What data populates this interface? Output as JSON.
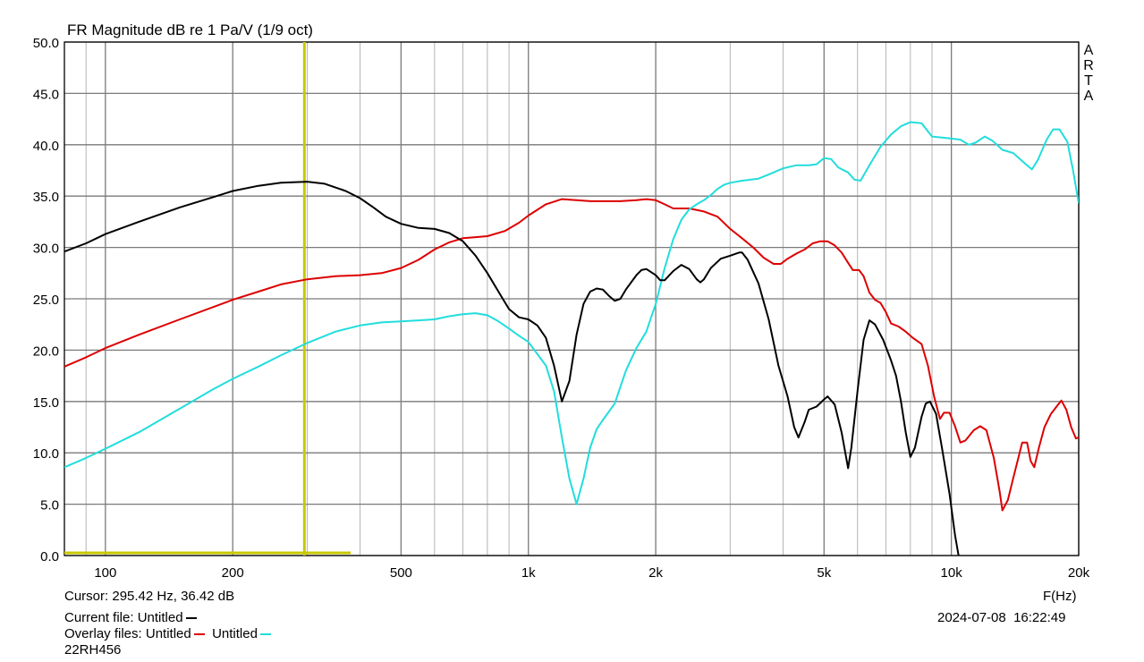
{
  "chart_data": {
    "type": "line",
    "title": "FR Magnitude dB re 1 Pa/V (1/9 oct)",
    "xlabel": "F(Hz)",
    "ylabel": "",
    "x_scale": "log",
    "xlim": [
      80,
      20000
    ],
    "ylim": [
      0,
      50
    ],
    "grid": true,
    "y_ticks": [
      "50.0",
      "45.0",
      "40.0",
      "35.0",
      "30.0",
      "25.0",
      "20.0",
      "15.0",
      "10.0",
      "5.0",
      "0.0"
    ],
    "y_tick_values": [
      50,
      45,
      40,
      35,
      30,
      25,
      20,
      15,
      10,
      5,
      0
    ],
    "x_ticks": [
      "100",
      "200",
      "500",
      "1k",
      "2k",
      "5k",
      "10k",
      "20k"
    ],
    "x_tick_values": [
      100,
      200,
      500,
      1000,
      2000,
      5000,
      10000,
      20000
    ],
    "side_label": [
      "A",
      "R",
      "T",
      "A"
    ],
    "cursor": {
      "frequency": 295.42,
      "level": 36.42,
      "color": "#c8c800"
    },
    "series": [
      {
        "name": "Untitled",
        "color": "#000000",
        "points": [
          [
            80,
            29.6
          ],
          [
            90,
            30.4
          ],
          [
            100,
            31.3
          ],
          [
            120,
            32.5
          ],
          [
            150,
            33.9
          ],
          [
            180,
            34.9
          ],
          [
            200,
            35.5
          ],
          [
            230,
            36.0
          ],
          [
            260,
            36.3
          ],
          [
            300,
            36.4
          ],
          [
            330,
            36.2
          ],
          [
            370,
            35.5
          ],
          [
            400,
            34.8
          ],
          [
            430,
            33.9
          ],
          [
            460,
            33.0
          ],
          [
            500,
            32.3
          ],
          [
            550,
            31.9
          ],
          [
            600,
            31.8
          ],
          [
            650,
            31.4
          ],
          [
            700,
            30.6
          ],
          [
            750,
            29.2
          ],
          [
            800,
            27.5
          ],
          [
            870,
            25.0
          ],
          [
            900,
            24.0
          ],
          [
            950,
            23.2
          ],
          [
            1000,
            23.0
          ],
          [
            1050,
            22.4
          ],
          [
            1100,
            21.2
          ],
          [
            1150,
            18.5
          ],
          [
            1200,
            15.0
          ],
          [
            1250,
            17.0
          ],
          [
            1300,
            21.5
          ],
          [
            1350,
            24.5
          ],
          [
            1400,
            25.7
          ],
          [
            1450,
            26.0
          ],
          [
            1500,
            25.9
          ],
          [
            1550,
            25.3
          ],
          [
            1600,
            24.8
          ],
          [
            1650,
            25.0
          ],
          [
            1700,
            25.9
          ],
          [
            1800,
            27.3
          ],
          [
            1850,
            27.8
          ],
          [
            1900,
            27.9
          ],
          [
            2000,
            27.3
          ],
          [
            2050,
            26.8
          ],
          [
            2100,
            26.8
          ],
          [
            2200,
            27.7
          ],
          [
            2300,
            28.3
          ],
          [
            2400,
            27.9
          ],
          [
            2500,
            26.9
          ],
          [
            2550,
            26.6
          ],
          [
            2600,
            26.9
          ],
          [
            2700,
            28.0
          ],
          [
            2850,
            28.9
          ],
          [
            3000,
            29.2
          ],
          [
            3150,
            29.5
          ],
          [
            3200,
            29.5
          ],
          [
            3300,
            28.8
          ],
          [
            3500,
            26.5
          ],
          [
            3700,
            23.0
          ],
          [
            3900,
            18.5
          ],
          [
            4100,
            15.5
          ],
          [
            4250,
            12.5
          ],
          [
            4350,
            11.5
          ],
          [
            4500,
            13.0
          ],
          [
            4600,
            14.2
          ],
          [
            4800,
            14.5
          ],
          [
            5000,
            15.2
          ],
          [
            5100,
            15.5
          ],
          [
            5300,
            14.7
          ],
          [
            5500,
            12.0
          ],
          [
            5700,
            8.5
          ],
          [
            5800,
            10.5
          ],
          [
            6000,
            16.0
          ],
          [
            6200,
            21.0
          ],
          [
            6400,
            22.9
          ],
          [
            6600,
            22.5
          ],
          [
            6900,
            21.0
          ],
          [
            7200,
            19.0
          ],
          [
            7400,
            17.5
          ],
          [
            7600,
            15.0
          ],
          [
            7800,
            12.0
          ],
          [
            8000,
            9.6
          ],
          [
            8200,
            10.5
          ],
          [
            8500,
            13.5
          ],
          [
            8700,
            14.8
          ],
          [
            8900,
            15.0
          ],
          [
            9200,
            13.8
          ],
          [
            9500,
            10.5
          ],
          [
            9900,
            6.0
          ],
          [
            10200,
            2.0
          ],
          [
            10400,
            0.0
          ]
        ]
      },
      {
        "name": "Untitled",
        "color": "#dd0000",
        "points": [
          [
            80,
            18.4
          ],
          [
            90,
            19.3
          ],
          [
            100,
            20.2
          ],
          [
            120,
            21.5
          ],
          [
            150,
            23.0
          ],
          [
            180,
            24.2
          ],
          [
            200,
            24.9
          ],
          [
            230,
            25.7
          ],
          [
            260,
            26.4
          ],
          [
            300,
            26.9
          ],
          [
            350,
            27.2
          ],
          [
            400,
            27.3
          ],
          [
            450,
            27.5
          ],
          [
            500,
            28.0
          ],
          [
            550,
            28.8
          ],
          [
            600,
            29.8
          ],
          [
            650,
            30.5
          ],
          [
            700,
            30.9
          ],
          [
            750,
            31.0
          ],
          [
            800,
            31.1
          ],
          [
            880,
            31.6
          ],
          [
            950,
            32.4
          ],
          [
            1000,
            33.1
          ],
          [
            1100,
            34.2
          ],
          [
            1200,
            34.7
          ],
          [
            1300,
            34.6
          ],
          [
            1400,
            34.5
          ],
          [
            1500,
            34.5
          ],
          [
            1650,
            34.5
          ],
          [
            1800,
            34.6
          ],
          [
            1900,
            34.7
          ],
          [
            2000,
            34.6
          ],
          [
            2100,
            34.2
          ],
          [
            2200,
            33.8
          ],
          [
            2400,
            33.8
          ],
          [
            2600,
            33.5
          ],
          [
            2800,
            33.0
          ],
          [
            3000,
            31.8
          ],
          [
            3200,
            30.9
          ],
          [
            3400,
            30.0
          ],
          [
            3600,
            29.0
          ],
          [
            3800,
            28.4
          ],
          [
            3950,
            28.4
          ],
          [
            4100,
            28.9
          ],
          [
            4300,
            29.4
          ],
          [
            4500,
            29.8
          ],
          [
            4700,
            30.4
          ],
          [
            4900,
            30.6
          ],
          [
            5100,
            30.6
          ],
          [
            5300,
            30.2
          ],
          [
            5500,
            29.5
          ],
          [
            5700,
            28.5
          ],
          [
            5850,
            27.8
          ],
          [
            6050,
            27.8
          ],
          [
            6200,
            27.2
          ],
          [
            6400,
            25.6
          ],
          [
            6600,
            24.9
          ],
          [
            6800,
            24.6
          ],
          [
            7000,
            23.7
          ],
          [
            7200,
            22.6
          ],
          [
            7500,
            22.3
          ],
          [
            7800,
            21.8
          ],
          [
            8100,
            21.2
          ],
          [
            8500,
            20.6
          ],
          [
            8800,
            18.5
          ],
          [
            9100,
            15.5
          ],
          [
            9400,
            13.3
          ],
          [
            9600,
            13.9
          ],
          [
            9900,
            13.9
          ],
          [
            10200,
            12.6
          ],
          [
            10500,
            11.0
          ],
          [
            10800,
            11.2
          ],
          [
            11300,
            12.2
          ],
          [
            11700,
            12.6
          ],
          [
            12100,
            12.2
          ],
          [
            12600,
            9.5
          ],
          [
            13000,
            6.3
          ],
          [
            13200,
            4.4
          ],
          [
            13600,
            5.4
          ],
          [
            14000,
            7.5
          ],
          [
            14400,
            9.5
          ],
          [
            14700,
            11.0
          ],
          [
            15100,
            11.0
          ],
          [
            15400,
            9.2
          ],
          [
            15700,
            8.6
          ],
          [
            16100,
            10.5
          ],
          [
            16600,
            12.5
          ],
          [
            17200,
            13.8
          ],
          [
            17800,
            14.6
          ],
          [
            18200,
            15.1
          ],
          [
            18700,
            14.2
          ],
          [
            19200,
            12.5
          ],
          [
            19700,
            11.4
          ],
          [
            20000,
            11.5
          ]
        ]
      },
      {
        "name": "Untitled",
        "color": "#22dddd",
        "points": [
          [
            80,
            8.6
          ],
          [
            90,
            9.5
          ],
          [
            100,
            10.4
          ],
          [
            120,
            12.0
          ],
          [
            150,
            14.3
          ],
          [
            180,
            16.2
          ],
          [
            200,
            17.2
          ],
          [
            230,
            18.4
          ],
          [
            260,
            19.5
          ],
          [
            300,
            20.7
          ],
          [
            350,
            21.8
          ],
          [
            400,
            22.4
          ],
          [
            450,
            22.7
          ],
          [
            500,
            22.8
          ],
          [
            550,
            22.9
          ],
          [
            600,
            23.0
          ],
          [
            650,
            23.3
          ],
          [
            700,
            23.5
          ],
          [
            750,
            23.6
          ],
          [
            800,
            23.4
          ],
          [
            850,
            22.8
          ],
          [
            900,
            22.1
          ],
          [
            950,
            21.4
          ],
          [
            1000,
            20.8
          ],
          [
            1100,
            18.5
          ],
          [
            1150,
            16.0
          ],
          [
            1200,
            11.5
          ],
          [
            1250,
            7.5
          ],
          [
            1300,
            5.0
          ],
          [
            1350,
            7.5
          ],
          [
            1400,
            10.5
          ],
          [
            1450,
            12.3
          ],
          [
            1500,
            13.2
          ],
          [
            1600,
            14.8
          ],
          [
            1700,
            18.0
          ],
          [
            1800,
            20.2
          ],
          [
            1900,
            21.8
          ],
          [
            2000,
            24.5
          ],
          [
            2100,
            28.0
          ],
          [
            2200,
            30.8
          ],
          [
            2300,
            32.7
          ],
          [
            2400,
            33.7
          ],
          [
            2500,
            34.2
          ],
          [
            2600,
            34.6
          ],
          [
            2700,
            35.1
          ],
          [
            2800,
            35.7
          ],
          [
            2900,
            36.1
          ],
          [
            3000,
            36.3
          ],
          [
            3200,
            36.5
          ],
          [
            3500,
            36.7
          ],
          [
            3700,
            37.1
          ],
          [
            4000,
            37.7
          ],
          [
            4300,
            38.0
          ],
          [
            4600,
            38.0
          ],
          [
            4800,
            38.1
          ],
          [
            5000,
            38.7
          ],
          [
            5200,
            38.6
          ],
          [
            5400,
            37.8
          ],
          [
            5700,
            37.3
          ],
          [
            5900,
            36.6
          ],
          [
            6100,
            36.5
          ],
          [
            6400,
            38.0
          ],
          [
            6800,
            39.8
          ],
          [
            7200,
            41.0
          ],
          [
            7600,
            41.8
          ],
          [
            8000,
            42.2
          ],
          [
            8500,
            42.1
          ],
          [
            9000,
            40.8
          ],
          [
            9500,
            40.7
          ],
          [
            10000,
            40.6
          ],
          [
            10500,
            40.5
          ],
          [
            11000,
            40.0
          ],
          [
            11400,
            40.2
          ],
          [
            12000,
            40.8
          ],
          [
            12500,
            40.4
          ],
          [
            13200,
            39.5
          ],
          [
            14000,
            39.2
          ],
          [
            14800,
            38.3
          ],
          [
            15500,
            37.6
          ],
          [
            16000,
            38.5
          ],
          [
            16800,
            40.5
          ],
          [
            17400,
            41.5
          ],
          [
            18000,
            41.5
          ],
          [
            18800,
            40.3
          ],
          [
            19400,
            37.5
          ],
          [
            20000,
            34.3
          ]
        ]
      }
    ]
  },
  "info": {
    "cursor_label": "Cursor:",
    "cursor_text": "295.42 Hz, 36.42 dB",
    "current_file_label": "Current file:",
    "current_file_name": "Untitled",
    "overlay_files_label": "Overlay files:",
    "overlay_file_1": "Untitled",
    "overlay_file_2": "Untitled",
    "driver_name": "22RH456",
    "date": "2024-07-08",
    "time": "16:22:49"
  }
}
